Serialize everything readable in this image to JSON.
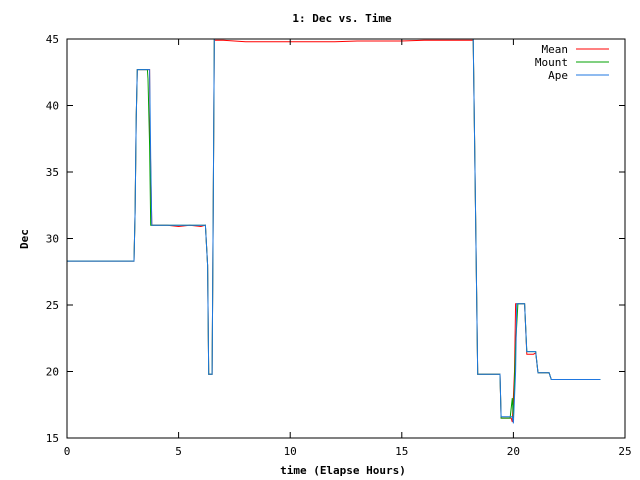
{
  "chart_data": {
    "type": "line",
    "title": "1: Dec vs. Time",
    "xlabel": "time (Elapse Hours)",
    "ylabel": "Dec",
    "xlim": [
      0,
      25
    ],
    "ylim": [
      15,
      45
    ],
    "xticks": [
      "0",
      "5",
      "10",
      "15",
      "20",
      "25"
    ],
    "yticks": [
      "15",
      "20",
      "25",
      "30",
      "35",
      "40",
      "45"
    ],
    "grid": false,
    "legend_position": "top-right",
    "series": [
      {
        "name": "Mean",
        "color": "#ff0000",
        "points": [
          [
            0,
            28.3
          ],
          [
            3.0,
            28.3
          ],
          [
            3.05,
            32.0
          ],
          [
            3.1,
            39.0
          ],
          [
            3.15,
            42.7
          ],
          [
            3.7,
            42.7
          ],
          [
            3.72,
            38.0
          ],
          [
            3.8,
            31.0
          ],
          [
            4.5,
            31.0
          ],
          [
            5.0,
            30.9
          ],
          [
            5.5,
            31.0
          ],
          [
            6.0,
            30.9
          ],
          [
            6.2,
            31.0
          ],
          [
            6.3,
            28.0
          ],
          [
            6.35,
            19.8
          ],
          [
            6.5,
            19.8
          ],
          [
            6.55,
            32.0
          ],
          [
            6.6,
            44.9
          ],
          [
            7.0,
            44.9
          ],
          [
            8.0,
            44.8
          ],
          [
            10.0,
            44.8
          ],
          [
            12.0,
            44.8
          ],
          [
            13.0,
            44.85
          ],
          [
            15.0,
            44.85
          ],
          [
            16.0,
            44.9
          ],
          [
            18.0,
            44.9
          ],
          [
            18.2,
            44.9
          ],
          [
            18.25,
            39.0
          ],
          [
            18.35,
            26.0
          ],
          [
            18.4,
            19.8
          ],
          [
            19.4,
            19.8
          ],
          [
            19.45,
            16.5
          ],
          [
            19.9,
            16.5
          ],
          [
            19.95,
            16.2
          ],
          [
            20.05,
            20.0
          ],
          [
            20.1,
            25.1
          ],
          [
            20.5,
            25.1
          ],
          [
            20.6,
            21.3
          ],
          [
            20.9,
            21.3
          ],
          [
            21.0,
            21.4
          ],
          [
            21.1,
            19.9
          ],
          [
            21.6,
            19.9
          ],
          [
            21.7,
            19.4
          ],
          [
            23.9,
            19.4
          ]
        ]
      },
      {
        "name": "Mount",
        "color": "#00a000",
        "points": [
          [
            0,
            28.3
          ],
          [
            3.0,
            28.3
          ],
          [
            3.05,
            32.0
          ],
          [
            3.1,
            39.0
          ],
          [
            3.15,
            42.7
          ],
          [
            3.6,
            42.7
          ],
          [
            3.63,
            42.0
          ],
          [
            3.7,
            37.0
          ],
          [
            3.75,
            31.0
          ],
          [
            4.5,
            31.0
          ],
          [
            5.0,
            31.0
          ],
          [
            5.5,
            31.0
          ],
          [
            6.0,
            31.0
          ],
          [
            6.2,
            31.0
          ],
          [
            6.3,
            28.0
          ],
          [
            6.35,
            19.8
          ],
          [
            6.5,
            19.8
          ],
          [
            6.55,
            32.0
          ],
          [
            6.6,
            45.0
          ],
          [
            18.2,
            45.0
          ],
          [
            18.25,
            39.0
          ],
          [
            18.35,
            26.0
          ],
          [
            18.4,
            19.8
          ],
          [
            19.4,
            19.8
          ],
          [
            19.45,
            16.5
          ],
          [
            19.85,
            16.5
          ],
          [
            19.95,
            18.0
          ],
          [
            20.0,
            16.5
          ],
          [
            20.1,
            22.0
          ],
          [
            20.2,
            25.1
          ],
          [
            20.5,
            25.1
          ],
          [
            20.6,
            21.5
          ],
          [
            21.0,
            21.5
          ],
          [
            21.1,
            19.9
          ],
          [
            21.6,
            19.9
          ],
          [
            21.7,
            19.4
          ],
          [
            23.9,
            19.4
          ]
        ]
      },
      {
        "name": "Ape",
        "color": "#1f77e0",
        "points": [
          [
            0,
            28.3
          ],
          [
            3.0,
            28.3
          ],
          [
            3.05,
            32.0
          ],
          [
            3.1,
            39.0
          ],
          [
            3.15,
            42.7
          ],
          [
            3.7,
            42.7
          ],
          [
            3.75,
            36.0
          ],
          [
            3.8,
            31.0
          ],
          [
            4.5,
            31.0
          ],
          [
            5.0,
            31.0
          ],
          [
            5.5,
            31.0
          ],
          [
            6.0,
            31.0
          ],
          [
            6.2,
            31.0
          ],
          [
            6.3,
            28.0
          ],
          [
            6.35,
            19.8
          ],
          [
            6.5,
            19.8
          ],
          [
            6.55,
            32.0
          ],
          [
            6.6,
            45.0
          ],
          [
            18.2,
            45.0
          ],
          [
            18.25,
            39.0
          ],
          [
            18.35,
            26.0
          ],
          [
            18.4,
            19.8
          ],
          [
            19.4,
            19.8
          ],
          [
            19.45,
            16.6
          ],
          [
            19.95,
            16.6
          ],
          [
            20.0,
            16.1
          ],
          [
            20.1,
            20.0
          ],
          [
            20.15,
            25.1
          ],
          [
            20.5,
            25.1
          ],
          [
            20.6,
            21.5
          ],
          [
            21.0,
            21.5
          ],
          [
            21.1,
            19.9
          ],
          [
            21.6,
            19.9
          ],
          [
            21.7,
            19.4
          ],
          [
            23.9,
            19.4
          ]
        ]
      }
    ]
  }
}
